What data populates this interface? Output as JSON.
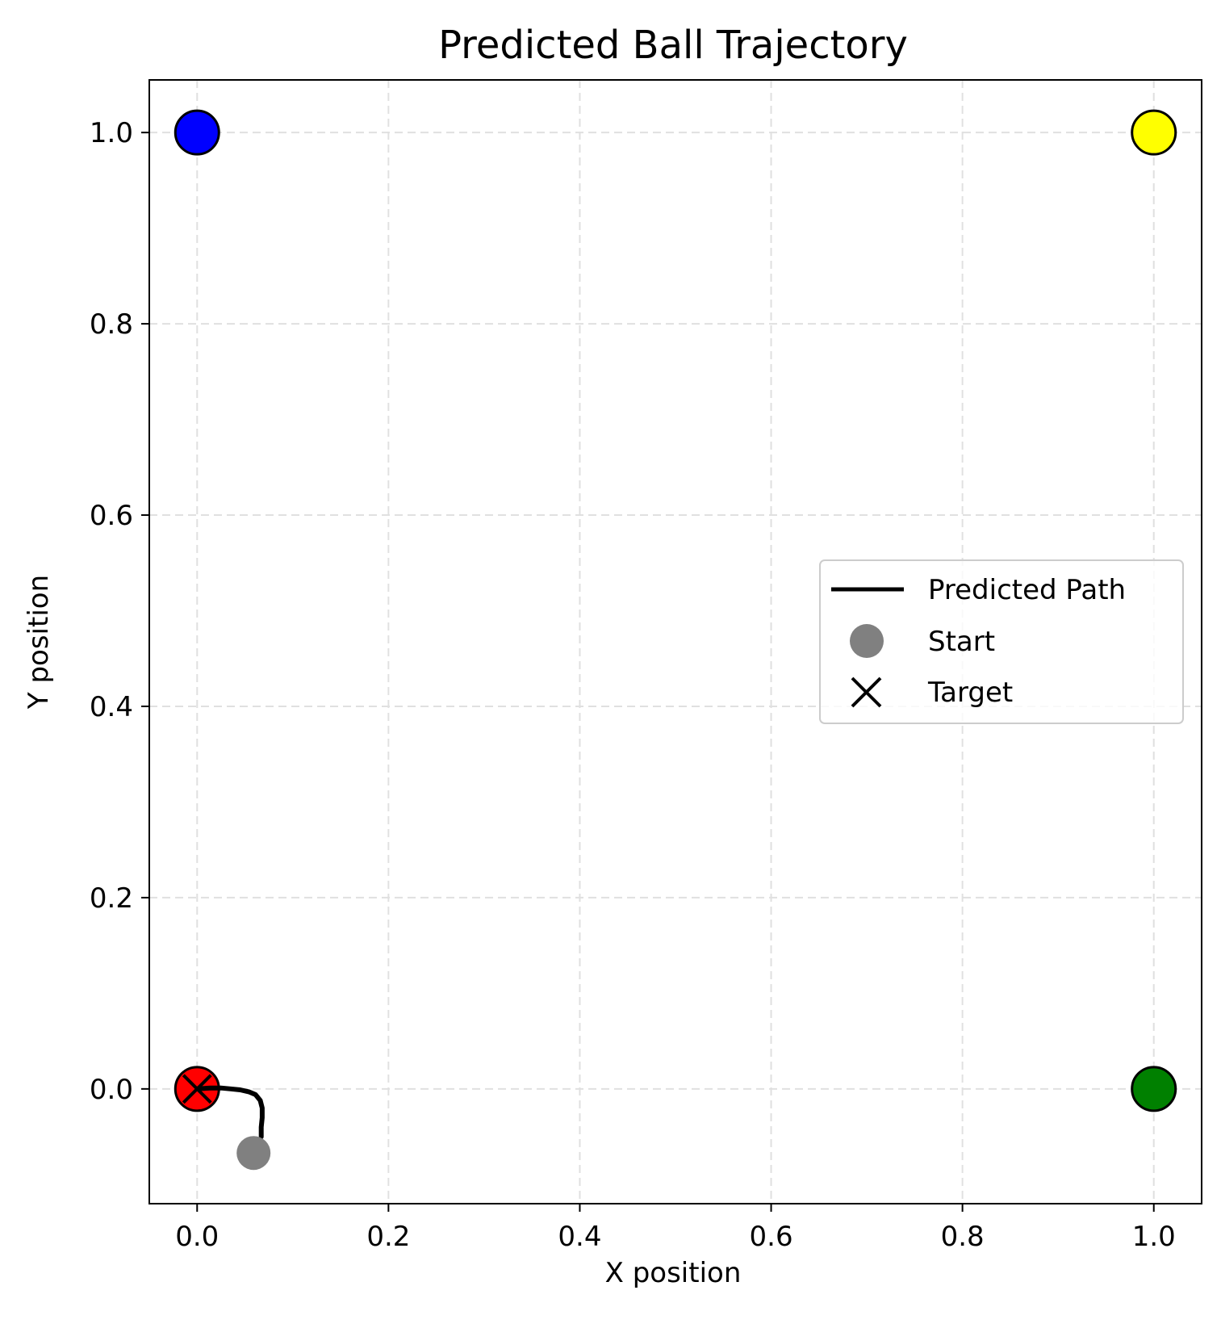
{
  "chart_data": {
    "type": "scatter",
    "title": "Predicted Ball Trajectory",
    "xlabel": "X position",
    "ylabel": "Y position",
    "xlim": [
      -0.05,
      1.05
    ],
    "ylim": [
      -0.12,
      1.055
    ],
    "xticks": [
      0.0,
      0.2,
      0.4,
      0.6,
      0.8,
      1.0
    ],
    "yticks": [
      0.0,
      0.2,
      0.4,
      0.6,
      0.8,
      1.0
    ],
    "xtick_labels": [
      "0.0",
      "0.2",
      "0.4",
      "0.6",
      "0.8",
      "1.0"
    ],
    "ytick_labels": [
      "0.0",
      "0.2",
      "0.4",
      "0.6",
      "0.8",
      "1.0"
    ],
    "grid": true,
    "grid_style": "dashed",
    "legend_position": "center-right",
    "corner_markers": [
      {
        "x": 0.0,
        "y": 1.0,
        "color": "#0000ff"
      },
      {
        "x": 1.0,
        "y": 1.0,
        "color": "#ffff00"
      },
      {
        "x": 0.0,
        "y": 0.0,
        "color": "#ff0000"
      },
      {
        "x": 1.0,
        "y": 0.0,
        "color": "#008000"
      }
    ],
    "series": [
      {
        "name": "Predicted Path",
        "type": "line",
        "color": "#000000",
        "x": [
          0.067,
          0.067,
          0.068,
          0.068,
          0.066,
          0.061,
          0.054,
          0.045,
          0.035,
          0.025,
          0.014,
          0.0
        ],
        "y": [
          -0.05,
          -0.04,
          -0.03,
          -0.02,
          -0.012,
          -0.006,
          -0.003,
          -0.001,
          0.0,
          0.001,
          0.001,
          0.0
        ]
      },
      {
        "name": "Start",
        "type": "scatter",
        "color": "#808080",
        "x": [
          0.059
        ],
        "y": [
          -0.067
        ]
      },
      {
        "name": "Target",
        "type": "scatter",
        "marker": "x",
        "color": "#000000",
        "x": [
          0.0
        ],
        "y": [
          0.0
        ]
      }
    ]
  }
}
